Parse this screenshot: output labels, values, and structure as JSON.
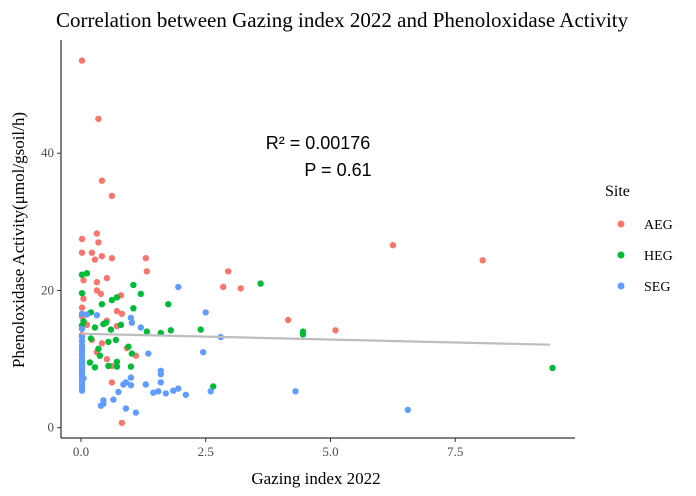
{
  "chart_data": {
    "type": "scatter",
    "title": "Correlation between Gazing index 2022 and Phenoloxidase Activity",
    "xlabel": "Gazing index 2022",
    "ylabel": "Phenoloxidase Activity(μmol/gsoil/h)",
    "xlim": [
      -0.4,
      9.9
    ],
    "ylim": [
      -1.5,
      56.5
    ],
    "x_ticks": [
      0,
      2.5,
      5,
      7.5
    ],
    "x_tick_labels": [
      "0.0",
      "2.5",
      "5.0",
      "7.5"
    ],
    "y_ticks": [
      0,
      20,
      40
    ],
    "y_tick_labels": [
      "0",
      "20",
      "40"
    ],
    "grid": false,
    "legend_position": "right",
    "legend_title": "Site",
    "annotations": [
      "R² = 0.00176",
      "P = 0.61"
    ],
    "trend_line": {
      "color": "#bdbdbd",
      "points": [
        [
          0.0,
          13.7
        ],
        [
          9.4,
          12.1
        ]
      ]
    },
    "series": [
      {
        "name": "AEG",
        "color": "#F8766D",
        "points": [
          [
            0.02,
            53.5
          ],
          [
            0.35,
            45.0
          ],
          [
            0.42,
            36.0
          ],
          [
            0.62,
            33.8
          ],
          [
            0.02,
            27.5
          ],
          [
            0.32,
            28.3
          ],
          [
            0.35,
            27.0
          ],
          [
            0.22,
            25.5
          ],
          [
            0.02,
            25.5
          ],
          [
            0.42,
            25.0
          ],
          [
            0.28,
            24.5
          ],
          [
            0.62,
            24.7
          ],
          [
            1.3,
            24.7
          ],
          [
            6.25,
            26.6
          ],
          [
            8.05,
            24.4
          ],
          [
            0.12,
            22.5
          ],
          [
            0.05,
            21.5
          ],
          [
            0.52,
            21.8
          ],
          [
            0.32,
            21.2
          ],
          [
            1.32,
            22.8
          ],
          [
            2.95,
            22.8
          ],
          [
            2.85,
            20.5
          ],
          [
            3.2,
            20.3
          ],
          [
            0.32,
            20.0
          ],
          [
            0.4,
            19.5
          ],
          [
            0.8,
            19.3
          ],
          [
            0.05,
            18.8
          ],
          [
            0.02,
            17.5
          ],
          [
            0.72,
            17.0
          ],
          [
            0.82,
            16.6
          ],
          [
            4.15,
            15.7
          ],
          [
            0.02,
            16.2
          ],
          [
            0.52,
            15.6
          ],
          [
            0.12,
            15.0
          ],
          [
            0.72,
            14.8
          ],
          [
            5.1,
            14.2
          ],
          [
            0.02,
            13.5
          ],
          [
            0.22,
            12.8
          ],
          [
            0.42,
            12.3
          ],
          [
            0.92,
            11.6
          ],
          [
            0.32,
            11.0
          ],
          [
            0.52,
            10.0
          ],
          [
            0.62,
            9.0
          ],
          [
            1.1,
            10.5
          ],
          [
            0.62,
            6.6
          ],
          [
            0.82,
            0.7
          ]
        ]
      },
      {
        "name": "HEG",
        "color": "#00BA38",
        "points": [
          [
            0.02,
            22.3
          ],
          [
            0.12,
            22.5
          ],
          [
            0.02,
            19.6
          ],
          [
            0.72,
            19.0
          ],
          [
            0.42,
            18.0
          ],
          [
            0.62,
            18.6
          ],
          [
            1.05,
            20.8
          ],
          [
            3.6,
            21.0
          ],
          [
            1.05,
            17.4
          ],
          [
            1.2,
            19.5
          ],
          [
            1.75,
            18.0
          ],
          [
            0.2,
            16.8
          ],
          [
            0.05,
            15.5
          ],
          [
            0.5,
            15.3
          ],
          [
            0.8,
            15.0
          ],
          [
            0.02,
            14.9
          ],
          [
            0.28,
            14.6
          ],
          [
            0.45,
            15.1
          ],
          [
            0.6,
            14.3
          ],
          [
            1.32,
            14.0
          ],
          [
            1.6,
            13.8
          ],
          [
            1.8,
            14.2
          ],
          [
            2.4,
            14.3
          ],
          [
            4.45,
            14.0
          ],
          [
            4.45,
            13.6
          ],
          [
            0.2,
            13.0
          ],
          [
            0.55,
            12.5
          ],
          [
            0.7,
            12.8
          ],
          [
            0.35,
            11.5
          ],
          [
            0.95,
            11.8
          ],
          [
            1.02,
            10.8
          ],
          [
            0.38,
            10.5
          ],
          [
            0.18,
            9.5
          ],
          [
            0.72,
            9.6
          ],
          [
            0.28,
            8.8
          ],
          [
            0.55,
            9.0
          ],
          [
            0.72,
            8.9
          ],
          [
            1.0,
            8.9
          ],
          [
            2.65,
            6.0
          ],
          [
            9.45,
            8.7
          ]
        ]
      },
      {
        "name": "SEG",
        "color": "#619CFF",
        "points": [
          [
            1.95,
            20.5
          ],
          [
            2.5,
            16.8
          ],
          [
            0.32,
            16.4
          ],
          [
            0.02,
            16.6
          ],
          [
            0.12,
            16.5
          ],
          [
            1.0,
            16.0
          ],
          [
            1.02,
            15.3
          ],
          [
            1.2,
            14.6
          ],
          [
            0.02,
            14.4
          ],
          [
            0.02,
            13.2
          ],
          [
            0.02,
            12.6
          ],
          [
            0.02,
            12.0
          ],
          [
            0.02,
            11.5
          ],
          [
            0.02,
            11.1
          ],
          [
            0.02,
            10.6
          ],
          [
            0.02,
            10.1
          ],
          [
            0.02,
            9.8
          ],
          [
            0.02,
            9.4
          ],
          [
            0.02,
            9.0
          ],
          [
            0.02,
            8.6
          ],
          [
            0.02,
            8.2
          ],
          [
            0.02,
            7.8
          ],
          [
            0.02,
            7.4
          ],
          [
            0.02,
            6.9
          ],
          [
            0.02,
            6.4
          ],
          [
            0.02,
            5.9
          ],
          [
            0.02,
            5.4
          ],
          [
            0.05,
            7.2
          ],
          [
            1.35,
            10.8
          ],
          [
            2.45,
            11.0
          ],
          [
            2.8,
            13.2
          ],
          [
            1.6,
            8.3
          ],
          [
            1.6,
            7.8
          ],
          [
            1.0,
            7.3
          ],
          [
            0.9,
            6.6
          ],
          [
            0.85,
            6.3
          ],
          [
            1.0,
            6.2
          ],
          [
            1.3,
            6.3
          ],
          [
            1.6,
            6.6
          ],
          [
            0.75,
            5.2
          ],
          [
            1.45,
            5.1
          ],
          [
            1.7,
            5.0
          ],
          [
            1.85,
            5.4
          ],
          [
            1.95,
            5.7
          ],
          [
            2.1,
            4.8
          ],
          [
            1.55,
            5.3
          ],
          [
            2.6,
            5.3
          ],
          [
            0.45,
            4.0
          ],
          [
            0.65,
            4.1
          ],
          [
            0.45,
            3.5
          ],
          [
            0.9,
            2.8
          ],
          [
            1.1,
            2.2
          ],
          [
            0.4,
            3.2
          ],
          [
            4.3,
            5.3
          ],
          [
            6.55,
            2.6
          ]
        ]
      }
    ]
  }
}
